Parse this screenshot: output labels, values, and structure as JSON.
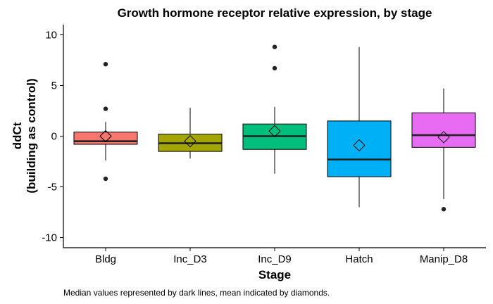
{
  "chart_data": {
    "type": "boxplot",
    "title": "Growth hormone receptor relative expression, by stage",
    "xlabel": "Stage",
    "ylabel_lines": [
      "ddCt",
      "(building as control)"
    ],
    "caption": "Median values represented by dark lines, mean indicated by diamonds.",
    "ylim": [
      -11,
      11
    ],
    "yticks": [
      10,
      5,
      0,
      -5,
      -10
    ],
    "ytick_labels": [
      "10",
      "5",
      "0",
      "-5",
      "-10"
    ],
    "grid": false,
    "categories": [
      "Bldg",
      "Inc_D3",
      "Inc_D9",
      "Hatch",
      "Manip_D8"
    ],
    "boxes": [
      {
        "category": "Bldg",
        "color": "#F8766D",
        "whisker_low": -2.4,
        "q1": -0.8,
        "median": -0.5,
        "q3": 0.4,
        "whisker_high": 1.4,
        "mean": 0.0,
        "outliers": [
          7.1,
          2.7,
          -4.2
        ]
      },
      {
        "category": "Inc_D3",
        "color": "#A3A500",
        "whisker_low": -2.2,
        "q1": -1.5,
        "median": -0.7,
        "q3": 0.2,
        "whisker_high": 2.8,
        "mean": -0.5,
        "outliers": []
      },
      {
        "category": "Inc_D9",
        "color": "#00BF7D",
        "whisker_low": -3.7,
        "q1": -1.3,
        "median": 0.0,
        "q3": 1.2,
        "whisker_high": 2.9,
        "mean": 0.5,
        "outliers": [
          8.8,
          6.7
        ]
      },
      {
        "category": "Hatch",
        "color": "#00B0F6",
        "whisker_low": -7.0,
        "q1": -4.0,
        "median": -2.3,
        "q3": 1.5,
        "whisker_high": 8.8,
        "mean": -0.9,
        "outliers": []
      },
      {
        "category": "Manip_D8",
        "color": "#E76BF3",
        "whisker_low": -6.2,
        "q1": -1.1,
        "median": 0.1,
        "q3": 2.3,
        "whisker_high": 4.7,
        "mean": -0.1,
        "outliers": [
          -7.2
        ]
      }
    ]
  }
}
